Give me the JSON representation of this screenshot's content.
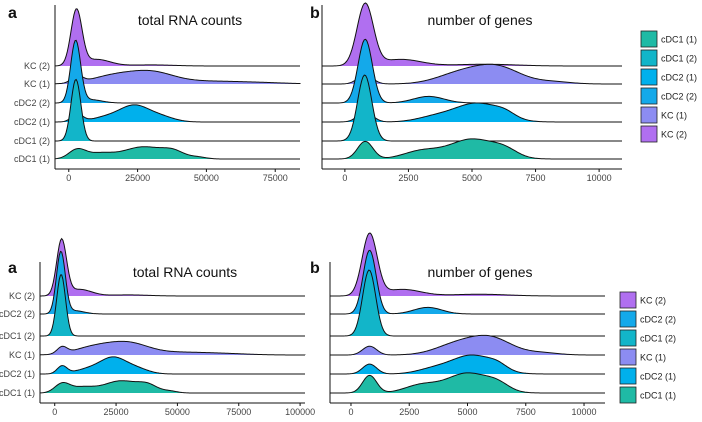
{
  "colors": {
    "KC (2)": "#b06ff0",
    "KC (1)": "#8c8cf2",
    "cDC2 (2)": "#14a9ea",
    "cDC2 (1)": "#00b0ec",
    "cDC1 (2)": "#12b5c9",
    "cDC1 (1)": "#1fbaa5"
  },
  "chart_data": [
    {
      "id": "top-left",
      "panel_letter": "a",
      "title": "total RNA counts",
      "type": "ridgeline",
      "xlim": [
        -5000,
        84000
      ],
      "xticks": [
        0,
        25000,
        50000,
        75000
      ],
      "categories": [
        "cDC1 (1)",
        "cDC1 (2)",
        "cDC2 (1)",
        "cDC2 (2)",
        "KC (1)",
        "KC (2)"
      ],
      "series": [
        {
          "name": "cDC1 (1)",
          "peaks": [
            [
              3000,
              3000,
              0.4
            ],
            [
              11000,
              5000,
              0.25
            ],
            [
              27000,
              7000,
              0.55
            ],
            [
              38000,
              4000,
              0.3
            ],
            [
              47000,
              3000,
              0.08
            ]
          ]
        },
        {
          "name": "cDC1 (2)",
          "peaks": [
            [
              2600,
              1800,
              2.8
            ]
          ]
        },
        {
          "name": "cDC2 (1)",
          "peaks": [
            [
              3000,
              2000,
              0.35
            ],
            [
              15000,
              6000,
              0.25
            ],
            [
              24000,
              5000,
              0.65
            ],
            [
              33000,
              5000,
              0.25
            ]
          ]
        },
        {
          "name": "cDC2 (2)",
          "peaks": [
            [
              2500,
              1800,
              2.8
            ],
            [
              8000,
              4000,
              0.15
            ]
          ]
        },
        {
          "name": "KC (1)",
          "peaks": [
            [
              3000,
              2000,
              0.3
            ],
            [
              16000,
              8000,
              0.35
            ],
            [
              30000,
              8000,
              0.5
            ],
            [
              50000,
              12000,
              0.12
            ],
            [
              70000,
              10000,
              0.05
            ]
          ]
        },
        {
          "name": "KC (2)",
          "peaks": [
            [
              2800,
              2000,
              2.5
            ],
            [
              10000,
              5000,
              0.3
            ],
            [
              30000,
              8000,
              0.05
            ]
          ]
        }
      ]
    },
    {
      "id": "top-right",
      "panel_letter": "b",
      "title": "number of genes",
      "type": "ridgeline",
      "xlim": [
        -900,
        10900
      ],
      "xticks": [
        0,
        2500,
        5000,
        7500,
        10000
      ],
      "categories": [
        "cDC1 (1)",
        "cDC1 (2)",
        "cDC2 (1)",
        "cDC2 (2)",
        "KC (1)",
        "KC (2)"
      ],
      "series": [
        {
          "name": "cDC1 (1)",
          "peaks": [
            [
              800,
              300,
              0.8
            ],
            [
              3000,
              700,
              0.35
            ],
            [
              5000,
              900,
              0.9
            ],
            [
              6300,
              500,
              0.3
            ]
          ]
        },
        {
          "name": "cDC1 (2)",
          "peaks": [
            [
              780,
              280,
              3.0
            ]
          ]
        },
        {
          "name": "cDC2 (1)",
          "peaks": [
            [
              800,
              300,
              0.45
            ],
            [
              3500,
              700,
              0.2
            ],
            [
              5200,
              900,
              0.85
            ],
            [
              6300,
              400,
              0.2
            ]
          ]
        },
        {
          "name": "cDC2 (2)",
          "peaks": [
            [
              800,
              280,
              2.9
            ],
            [
              3300,
              600,
              0.3
            ]
          ]
        },
        {
          "name": "KC (1)",
          "peaks": [
            [
              800,
              300,
              0.4
            ],
            [
              4500,
              900,
              0.45
            ],
            [
              6000,
              900,
              0.75
            ],
            [
              8200,
              700,
              0.1
            ]
          ]
        },
        {
          "name": "KC (2)",
          "peaks": [
            [
              800,
              320,
              2.8
            ],
            [
              2200,
              800,
              0.3
            ],
            [
              5500,
              1200,
              0.08
            ]
          ]
        }
      ]
    },
    {
      "id": "bottom-left",
      "panel_letter": "a",
      "title": "total RNA counts",
      "type": "ridgeline",
      "xlim": [
        -6000,
        102000
      ],
      "xticks": [
        0,
        25000,
        50000,
        75000,
        100000
      ],
      "categories": [
        "cDC1 (1)",
        "cDC2 (1)",
        "KC (1)",
        "cDC1 (2)",
        "cDC2 (2)",
        "KC (2)"
      ],
      "series": [
        {
          "name": "cDC1 (1)",
          "peaks": [
            [
              3000,
              3000,
              0.4
            ],
            [
              11000,
              5000,
              0.25
            ],
            [
              27000,
              7000,
              0.55
            ],
            [
              38000,
              4000,
              0.3
            ],
            [
              47000,
              3000,
              0.08
            ]
          ]
        },
        {
          "name": "cDC2 (1)",
          "peaks": [
            [
              3000,
              2000,
              0.35
            ],
            [
              15000,
              6000,
              0.25
            ],
            [
              24000,
              5000,
              0.65
            ],
            [
              33000,
              5000,
              0.25
            ]
          ]
        },
        {
          "name": "KC (1)",
          "peaks": [
            [
              3000,
              2000,
              0.3
            ],
            [
              16000,
              8000,
              0.35
            ],
            [
              30000,
              8000,
              0.5
            ],
            [
              50000,
              12000,
              0.12
            ],
            [
              70000,
              10000,
              0.05
            ]
          ]
        },
        {
          "name": "cDC1 (2)",
          "peaks": [
            [
              2600,
              1800,
              2.8
            ]
          ]
        },
        {
          "name": "cDC2 (2)",
          "peaks": [
            [
              2500,
              1800,
              2.8
            ],
            [
              8000,
              4000,
              0.15
            ]
          ]
        },
        {
          "name": "KC (2)",
          "peaks": [
            [
              2800,
              2000,
              2.5
            ],
            [
              10000,
              5000,
              0.3
            ],
            [
              30000,
              8000,
              0.05
            ]
          ]
        }
      ]
    },
    {
      "id": "bottom-right",
      "panel_letter": "b",
      "title": "number of genes",
      "type": "ridgeline",
      "xlim": [
        -900,
        10900
      ],
      "xticks": [
        0,
        2500,
        5000,
        7500,
        10000
      ],
      "categories": [
        "cDC1 (1)",
        "cDC2 (1)",
        "KC (1)",
        "cDC1 (2)",
        "cDC2 (2)",
        "KC (2)"
      ],
      "series": [
        {
          "name": "cDC1 (1)",
          "peaks": [
            [
              800,
              300,
              0.8
            ],
            [
              3000,
              700,
              0.35
            ],
            [
              5000,
              900,
              0.9
            ],
            [
              6300,
              500,
              0.3
            ]
          ]
        },
        {
          "name": "cDC2 (1)",
          "peaks": [
            [
              800,
              300,
              0.45
            ],
            [
              3500,
              700,
              0.2
            ],
            [
              5200,
              900,
              0.85
            ],
            [
              6300,
              400,
              0.2
            ]
          ]
        },
        {
          "name": "KC (1)",
          "peaks": [
            [
              800,
              300,
              0.4
            ],
            [
              4500,
              900,
              0.45
            ],
            [
              6000,
              900,
              0.75
            ],
            [
              8200,
              700,
              0.1
            ]
          ]
        },
        {
          "name": "cDC1 (2)",
          "peaks": [
            [
              780,
              280,
              3.0
            ]
          ]
        },
        {
          "name": "cDC2 (2)",
          "peaks": [
            [
              800,
              280,
              2.9
            ],
            [
              3300,
              600,
              0.3
            ]
          ]
        },
        {
          "name": "KC (2)",
          "peaks": [
            [
              800,
              320,
              2.8
            ],
            [
              2200,
              800,
              0.3
            ],
            [
              5500,
              1200,
              0.08
            ]
          ]
        }
      ]
    }
  ],
  "legends": [
    {
      "id": "top",
      "items": [
        "cDC1 (1)",
        "cDC1 (2)",
        "cDC2 (1)",
        "cDC2 (2)",
        "KC (1)",
        "KC (2)"
      ]
    },
    {
      "id": "bottom",
      "items": [
        "KC (2)",
        "cDC2 (2)",
        "cDC1 (2)",
        "KC (1)",
        "cDC2 (1)",
        "cDC1 (1)"
      ]
    }
  ]
}
